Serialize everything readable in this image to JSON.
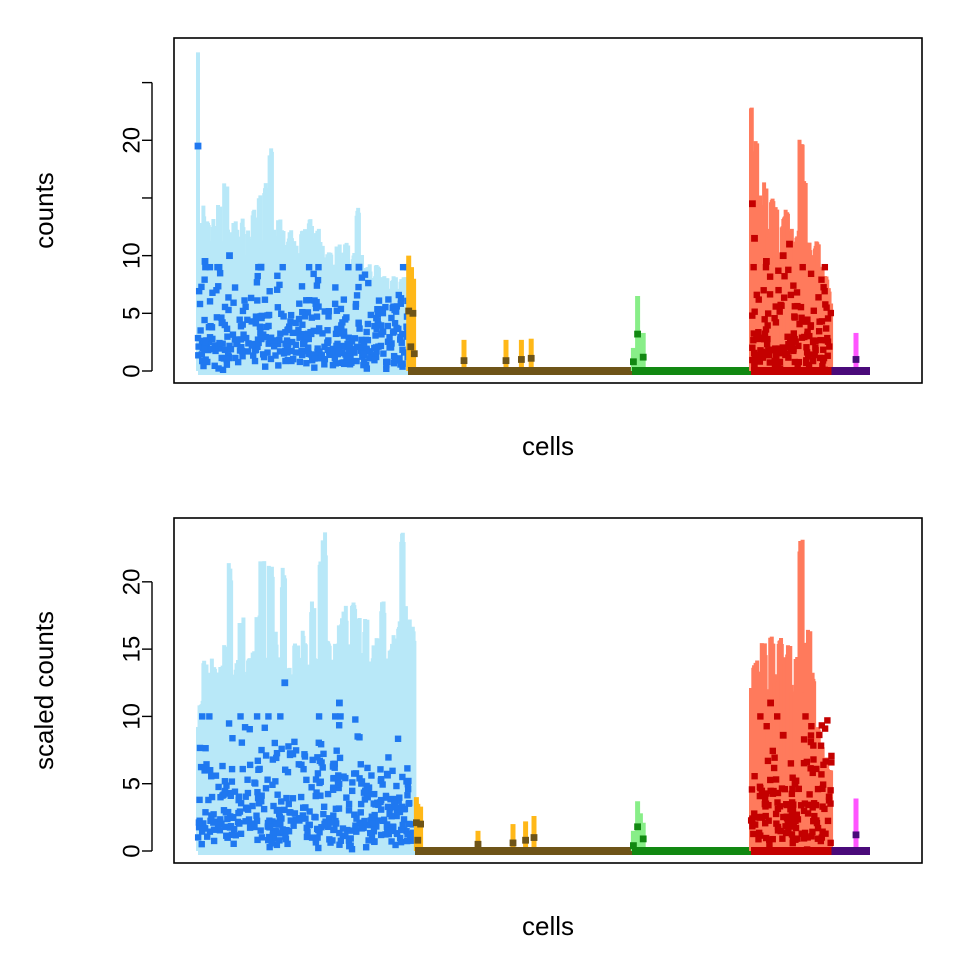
{
  "chart_data": [
    {
      "type": "scatter",
      "title": "",
      "xlabel": "cells",
      "ylabel": "counts",
      "xlim": [
        0,
        1000
      ],
      "ylim": [
        0,
        28
      ],
      "yticks": [
        0,
        5,
        10,
        15,
        20,
        25
      ],
      "ytick_labels": [
        "0",
        "5",
        "10",
        "",
        "20",
        ""
      ],
      "grid": false,
      "legend": "none",
      "series": [
        {
          "x_range": [
            0,
            300
          ],
          "range_color": "#b8e8f8",
          "point_color": "#1f78f0",
          "range_profile": [
            [
              0,
              28.5
            ],
            [
              2,
              11
            ],
            [
              4,
              13
            ],
            [
              6,
              11
            ],
            [
              8,
              14
            ],
            [
              10,
              12
            ],
            [
              14,
              13
            ],
            [
              18,
              11
            ],
            [
              22,
              13
            ],
            [
              26,
              12
            ],
            [
              30,
              14
            ],
            [
              34,
              11
            ],
            [
              40,
              16
            ],
            [
              44,
              12
            ],
            [
              48,
              11
            ],
            [
              52,
              13
            ],
            [
              56,
              12
            ],
            [
              60,
              11
            ],
            [
              64,
              13
            ],
            [
              68,
              10
            ],
            [
              72,
              12
            ],
            [
              76,
              11
            ],
            [
              80,
              14
            ],
            [
              84,
              12
            ],
            [
              88,
              15
            ],
            [
              92,
              11
            ],
            [
              96,
              16
            ],
            [
              100,
              13
            ],
            [
              104,
              19
            ],
            [
              108,
              12
            ],
            [
              112,
              11
            ],
            [
              116,
              13
            ],
            [
              120,
              12
            ],
            [
              126,
              11
            ],
            [
              132,
              12
            ],
            [
              138,
              11
            ],
            [
              144,
              10
            ],
            [
              150,
              12
            ],
            [
              156,
              11
            ],
            [
              160,
              13
            ],
            [
              166,
              11
            ],
            [
              170,
              12
            ],
            [
              176,
              11
            ],
            [
              182,
              10
            ],
            [
              188,
              10
            ],
            [
              194,
              9
            ],
            [
              200,
              11
            ],
            [
              206,
              10
            ],
            [
              212,
              11
            ],
            [
              218,
              9
            ],
            [
              224,
              10
            ],
            [
              228,
              14
            ],
            [
              232,
              10
            ],
            [
              238,
              9
            ],
            [
              244,
              9
            ],
            [
              250,
              8
            ],
            [
              256,
              9
            ],
            [
              262,
              8
            ],
            [
              268,
              8
            ],
            [
              274,
              7
            ],
            [
              280,
              8
            ],
            [
              286,
              7
            ],
            [
              292,
              8
            ],
            [
              296,
              8
            ],
            [
              299,
              8
            ]
          ],
          "point_range": [
            0,
            9
          ],
          "points": [
            [
              0,
              19.5
            ],
            [
              10,
              9.5
            ],
            [
              45,
              10
            ],
            [
              90,
              9
            ],
            [
              230,
              9
            ]
          ]
        },
        {
          "x_range": [
            300,
            310
          ],
          "range_color": "#ffb818",
          "point_color": "#6e5418",
          "range_profile": [
            [
              301,
              10
            ],
            [
              303,
              8
            ],
            [
              305,
              9
            ],
            [
              308,
              8
            ]
          ],
          "points": [
            [
              301,
              5.2
            ],
            [
              304,
              2.1
            ],
            [
              307,
              5.0
            ],
            [
              309,
              1.5
            ]
          ]
        },
        {
          "x_range": [
            310,
            620
          ],
          "range_color": "#ffb818",
          "point_color": "#6e5418",
          "range_profile": [
            [
              380,
              2.7
            ],
            [
              440,
              2.7
            ],
            [
              462,
              2.7
            ],
            [
              476,
              2.8
            ]
          ],
          "points": [
            [
              380,
              0.9
            ],
            [
              440,
              0.9
            ],
            [
              462,
              1.0
            ],
            [
              476,
              1.1
            ]
          ]
        },
        {
          "x_range": [
            620,
            790
          ],
          "range_color": "#88ee88",
          "point_color": "#118811",
          "range_profile": [
            [
              622,
              2
            ],
            [
              628,
              6.5
            ],
            [
              632,
              3
            ],
            [
              636,
              3.3
            ]
          ],
          "points": [
            [
              622,
              0.8
            ],
            [
              628,
              3.2
            ],
            [
              636,
              1.2
            ]
          ]
        },
        {
          "x_range": [
            790,
            905
          ],
          "range_color": "#ff7a5c",
          "point_color": "#c40000",
          "range_profile": [
            [
              790,
              23.5
            ],
            [
              793,
              18
            ],
            [
              797,
              20
            ],
            [
              801,
              15
            ],
            [
              806,
              14
            ],
            [
              810,
              16
            ],
            [
              816,
              12
            ],
            [
              820,
              15
            ],
            [
              826,
              14
            ],
            [
              831,
              10
            ],
            [
              836,
              13
            ],
            [
              840,
              14
            ],
            [
              846,
              12
            ],
            [
              852,
              11
            ],
            [
              856,
              12
            ],
            [
              862,
              20
            ],
            [
              866,
              16
            ],
            [
              872,
              11
            ],
            [
              878,
              10
            ],
            [
              884,
              11
            ],
            [
              890,
              9
            ],
            [
              896,
              8
            ],
            [
              902,
              7
            ],
            [
              904,
              6
            ]
          ],
          "point_range": [
            0,
            9
          ],
          "points": [
            [
              792,
              14.5
            ],
            [
              795,
              11.5
            ],
            [
              812,
              9.5
            ],
            [
              836,
              10
            ],
            [
              845,
              11
            ]
          ]
        },
        {
          "x_range": [
            905,
            960
          ],
          "range_color": "#ff55ff",
          "point_color": "#4a0a7a",
          "range_profile": [
            [
              940,
              3.3
            ]
          ],
          "points": [
            [
              940,
              1.0
            ]
          ]
        }
      ]
    },
    {
      "type": "scatter",
      "title": "",
      "xlabel": "cells",
      "ylabel": "scaled counts",
      "xlim": [
        0,
        1000
      ],
      "ylim": [
        0,
        24
      ],
      "yticks": [
        0,
        5,
        10,
        15,
        20
      ],
      "ytick_labels": [
        "0",
        "5",
        "10",
        "15",
        "20"
      ],
      "grid": false,
      "legend": "none",
      "series": [
        {
          "x_range": [
            0,
            310
          ],
          "range_color": "#b8e8f8",
          "point_color": "#1f78f0",
          "range_profile": [
            [
              0,
              9
            ],
            [
              4,
              11
            ],
            [
              10,
              14
            ],
            [
              16,
              13
            ],
            [
              22,
              14
            ],
            [
              28,
              13
            ],
            [
              34,
              14
            ],
            [
              40,
              15
            ],
            [
              46,
              21
            ],
            [
              50,
              13
            ],
            [
              56,
              14
            ],
            [
              62,
              17
            ],
            [
              68,
              13
            ],
            [
              74,
              14
            ],
            [
              80,
              15
            ],
            [
              86,
              17
            ],
            [
              92,
              21.5
            ],
            [
              98,
              14
            ],
            [
              104,
              21
            ],
            [
              110,
              16
            ],
            [
              116,
              14
            ],
            [
              122,
              20.5
            ],
            [
              128,
              14
            ],
            [
              134,
              13
            ],
            [
              140,
              15
            ],
            [
              146,
              14
            ],
            [
              152,
              16
            ],
            [
              158,
              14
            ],
            [
              164,
              18
            ],
            [
              170,
              14
            ],
            [
              176,
              21
            ],
            [
              180,
              23
            ],
            [
              186,
              16
            ],
            [
              192,
              14
            ],
            [
              198,
              15
            ],
            [
              204,
              17
            ],
            [
              210,
              18
            ],
            [
              216,
              15
            ],
            [
              222,
              18
            ],
            [
              228,
              17
            ],
            [
              234,
              15
            ],
            [
              240,
              17
            ],
            [
              246,
              14
            ],
            [
              252,
              15
            ],
            [
              258,
              16
            ],
            [
              264,
              18
            ],
            [
              270,
              14
            ],
            [
              276,
              15
            ],
            [
              282,
              16
            ],
            [
              288,
              17
            ],
            [
              292,
              23
            ],
            [
              296,
              18
            ],
            [
              300,
              17
            ],
            [
              306,
              17
            ],
            [
              309,
              16
            ]
          ],
          "point_range": [
            0,
            10
          ],
          "points": [
            [
              124,
              12.5
            ],
            [
              202,
              11
            ]
          ]
        },
        {
          "x_range": [
            310,
            620
          ],
          "range_color": "#ffb818",
          "point_color": "#6e5418",
          "range_profile": [
            [
              312,
              4
            ],
            [
              314,
              3.5
            ],
            [
              318,
              3.3
            ],
            [
              400,
              1.5
            ],
            [
              450,
              2.0
            ],
            [
              468,
              2.2
            ],
            [
              480,
              2.6
            ]
          ],
          "points": [
            [
              312,
              2.1
            ],
            [
              314,
              0.8
            ],
            [
              318,
              2.0
            ],
            [
              400,
              0.5
            ],
            [
              450,
              0.6
            ],
            [
              468,
              0.8
            ],
            [
              480,
              1.0
            ]
          ]
        },
        {
          "x_range": [
            620,
            790
          ],
          "range_color": "#88ee88",
          "point_color": "#118811",
          "range_profile": [
            [
              622,
              1.5
            ],
            [
              628,
              3.7
            ],
            [
              632,
              2.8
            ],
            [
              636,
              2.1
            ]
          ],
          "points": [
            [
              622,
              0.4
            ],
            [
              628,
              1.8
            ],
            [
              636,
              0.9
            ]
          ]
        },
        {
          "x_range": [
            790,
            905
          ],
          "range_color": "#ff7a5c",
          "point_color": "#c40000",
          "range_profile": [
            [
              790,
              12
            ],
            [
              796,
              14
            ],
            [
              802,
              13
            ],
            [
              808,
              15
            ],
            [
              814,
              12
            ],
            [
              820,
              16
            ],
            [
              826,
              13
            ],
            [
              832,
              16
            ],
            [
              838,
              14
            ],
            [
              844,
              15
            ],
            [
              850,
              12
            ],
            [
              856,
              14
            ],
            [
              862,
              23
            ],
            [
              866,
              12
            ],
            [
              872,
              16
            ],
            [
              878,
              13
            ],
            [
              884,
              9
            ],
            [
              890,
              8
            ],
            [
              896,
              7
            ],
            [
              902,
              6
            ]
          ],
          "point_range": [
            0,
            10
          ],
          "points": [
            [
              818,
              11
            ],
            [
              836,
              8.6
            ]
          ]
        },
        {
          "x_range": [
            905,
            960
          ],
          "range_color": "#ff55ff",
          "point_color": "#4a0a7a",
          "range_profile": [
            [
              940,
              3.9
            ]
          ],
          "points": [
            [
              940,
              1.2
            ]
          ]
        }
      ]
    }
  ]
}
